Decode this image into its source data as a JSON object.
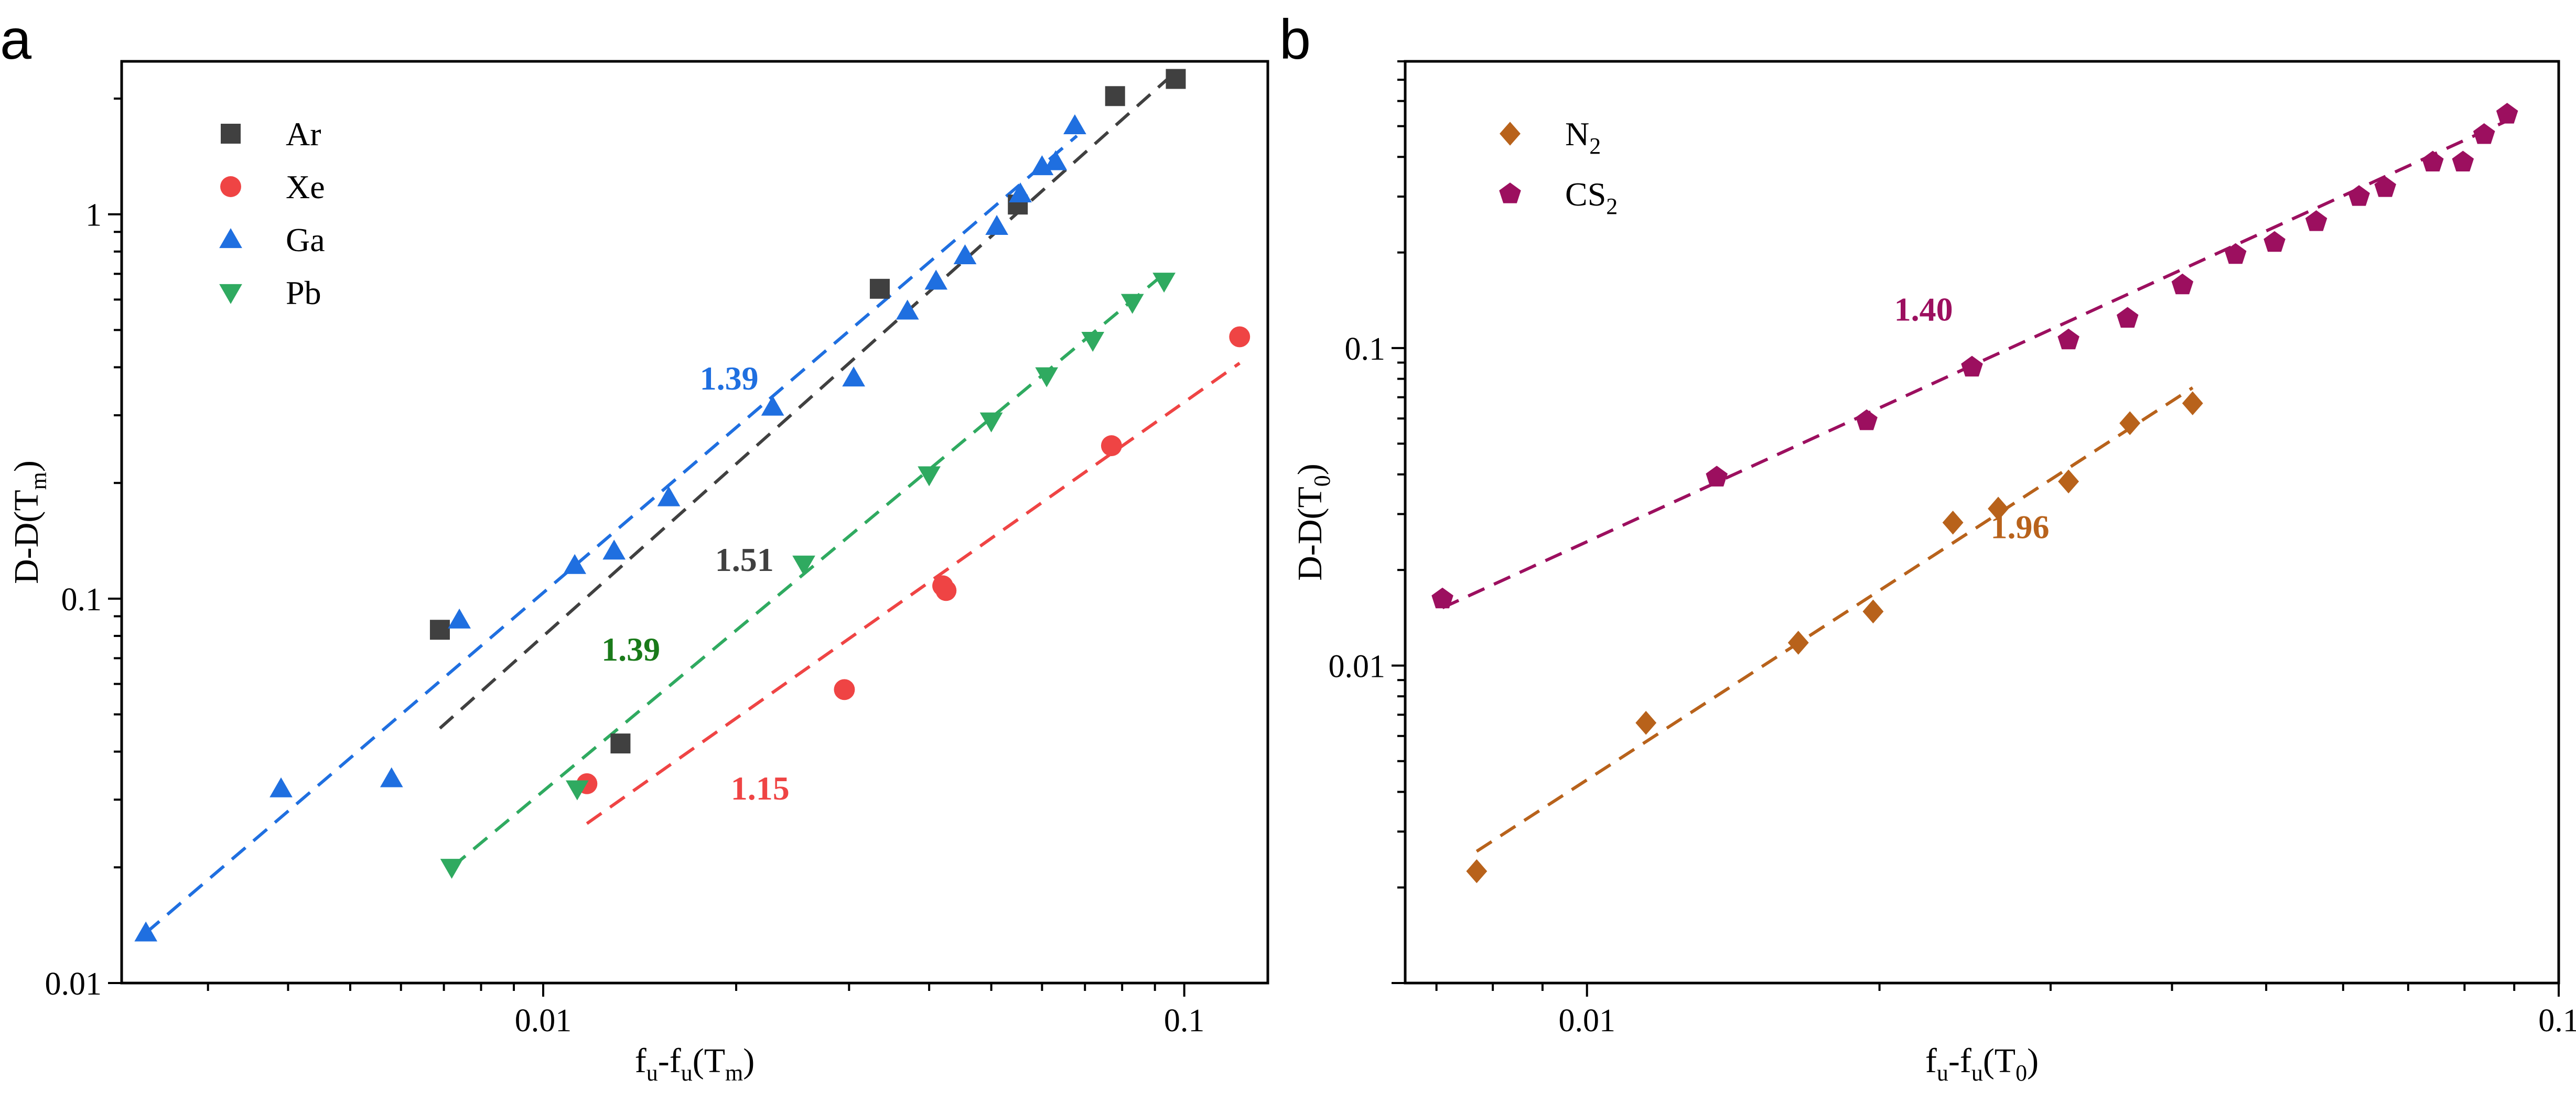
{
  "chart_data": [
    {
      "panel_label": "a",
      "type": "scatter",
      "scale": "log-log",
      "xlabel_main": "f",
      "xlabel_sub1": "u",
      "xlabel_mid": "-f",
      "xlabel_sub2": "u",
      "xlabel_paren_open": "(T",
      "xlabel_sub3": "m",
      "xlabel_paren_close": ")",
      "ylabel_main": "D-D(T",
      "ylabel_sub": "m",
      "ylabel_close": ")",
      "xlim": [
        0.0022,
        0.135
      ],
      "ylim": [
        0.01,
        2.5
      ],
      "x_ticks": [
        {
          "v": 0.01,
          "label": "0.01"
        },
        {
          "v": 0.1,
          "label": "0.1"
        }
      ],
      "y_ticks": [
        {
          "v": 0.01,
          "label": "0.01"
        },
        {
          "v": 0.1,
          "label": "0.1"
        },
        {
          "v": 1,
          "label": "1"
        }
      ],
      "legend_position": "top-left",
      "series": [
        {
          "name": "Ar",
          "marker": "square",
          "color": "#404040",
          "points": [
            [
              0.0069,
              0.083
            ],
            [
              0.0132,
              0.042
            ],
            [
              0.0335,
              0.64
            ],
            [
              0.055,
              1.06
            ],
            [
              0.078,
              2.03
            ],
            [
              0.097,
              2.25
            ]
          ],
          "fit": [
            [
              0.0069,
              0.046
            ],
            [
              0.097,
              2.35
            ]
          ]
        },
        {
          "name": "Xe",
          "marker": "circle",
          "color": "#ef4444",
          "points": [
            [
              0.0117,
              0.033
            ],
            [
              0.0295,
              0.058
            ],
            [
              0.042,
              0.108
            ],
            [
              0.0425,
              0.105
            ],
            [
              0.077,
              0.25
            ],
            [
              0.122,
              0.48
            ]
          ],
          "fit": [
            [
              0.0117,
              0.026
            ],
            [
              0.122,
              0.41
            ]
          ]
        },
        {
          "name": "Ga",
          "marker": "triangle-up",
          "color": "#1f6fe0",
          "points": [
            [
              0.0024,
              0.0135
            ],
            [
              0.0039,
              0.032
            ],
            [
              0.0058,
              0.034
            ],
            [
              0.0074,
              0.088
            ],
            [
              0.0112,
              0.122
            ],
            [
              0.0129,
              0.133
            ],
            [
              0.0157,
              0.183
            ],
            [
              0.0228,
              0.315
            ],
            [
              0.0305,
              0.375
            ],
            [
              0.037,
              0.56
            ],
            [
              0.041,
              0.67
            ],
            [
              0.0455,
              0.78
            ],
            [
              0.051,
              0.93
            ],
            [
              0.0555,
              1.13
            ],
            [
              0.06,
              1.33
            ],
            [
              0.063,
              1.37
            ],
            [
              0.0675,
              1.7
            ]
          ],
          "fit": [
            [
              0.0024,
              0.0135
            ],
            [
              0.068,
              1.6
            ]
          ]
        },
        {
          "name": "Pb",
          "marker": "triangle-down",
          "color": "#2faa60",
          "points": [
            [
              0.0072,
              0.02
            ],
            [
              0.0113,
              0.032
            ],
            [
              0.0255,
              0.123
            ],
            [
              0.04,
              0.21
            ],
            [
              0.05,
              0.29
            ],
            [
              0.061,
              0.38
            ],
            [
              0.072,
              0.47
            ],
            [
              0.083,
              0.59
            ],
            [
              0.093,
              0.67
            ]
          ],
          "fit": [
            [
              0.0072,
              0.02
            ],
            [
              0.093,
              0.7
            ]
          ]
        }
      ],
      "annotations": [
        {
          "text": "1.39",
          "color": "#1f6fe0",
          "at": [
            0.0195,
            0.35
          ]
        },
        {
          "text": "1.51",
          "color": "#404040",
          "at": [
            0.0206,
            0.118
          ]
        },
        {
          "text": "1.39",
          "color": "#1a7a1a",
          "at": [
            0.0137,
            0.069
          ]
        },
        {
          "text": "1.15",
          "color": "#ef4444",
          "at": [
            0.0218,
            0.03
          ]
        }
      ]
    },
    {
      "panel_label": "b",
      "type": "scatter",
      "scale": "log-log",
      "xlabel_main": "f",
      "xlabel_sub1": "u",
      "xlabel_mid": "-f",
      "xlabel_sub2": "u",
      "xlabel_paren_open": "(T",
      "xlabel_sub3": "0",
      "xlabel_paren_close": ")",
      "ylabel_main": "D-D(T",
      "ylabel_sub": "0",
      "ylabel_close": ")",
      "xlim": [
        0.0065,
        0.1
      ],
      "ylim": [
        0.001,
        0.8
      ],
      "x_ticks": [
        {
          "v": 0.01,
          "label": "0.01"
        },
        {
          "v": 0.1,
          "label": "0.1"
        }
      ],
      "y_ticks": [
        {
          "v": 0.01,
          "label": "0.01"
        },
        {
          "v": 0.1,
          "label": "0.1"
        }
      ],
      "legend_position": "top-left",
      "series": [
        {
          "name": "N",
          "name_sub": "2",
          "marker": "diamond",
          "color": "#b8621b",
          "points": [
            [
              0.0077,
              0.00225
            ],
            [
              0.0115,
              0.0066
            ],
            [
              0.0165,
              0.0118
            ],
            [
              0.0197,
              0.0148
            ],
            [
              0.0238,
              0.0282
            ],
            [
              0.0265,
              0.0312
            ],
            [
              0.0313,
              0.038
            ],
            [
              0.0362,
              0.058
            ],
            [
              0.042,
              0.067
            ]
          ],
          "fit": [
            [
              0.0077,
              0.0026
            ],
            [
              0.042,
              0.075
            ]
          ]
        },
        {
          "name": "CS",
          "name_sub": "2",
          "marker": "pentagon",
          "color": "#9c0f5f",
          "points": [
            [
              0.0071,
              0.0162
            ],
            [
              0.0136,
              0.0392
            ],
            [
              0.0194,
              0.059
            ],
            [
              0.0249,
              0.087
            ],
            [
              0.0313,
              0.106
            ],
            [
              0.036,
              0.124
            ],
            [
              0.041,
              0.158
            ],
            [
              0.0465,
              0.197
            ],
            [
              0.051,
              0.215
            ],
            [
              0.0563,
              0.25
            ],
            [
              0.0623,
              0.3
            ],
            [
              0.0663,
              0.32
            ],
            [
              0.0742,
              0.385
            ],
            [
              0.0797,
              0.385
            ],
            [
              0.0838,
              0.47
            ],
            [
              0.0885,
              0.545
            ]
          ],
          "fit": [
            [
              0.0071,
              0.0152
            ],
            [
              0.0885,
              0.52
            ]
          ]
        }
      ],
      "annotations": [
        {
          "text": "1.40",
          "color": "#9c0f5f",
          "at": [
            0.0222,
            0.122
          ]
        },
        {
          "text": "1.96",
          "color": "#b8621b",
          "at": [
            0.0279,
            0.0252
          ]
        }
      ]
    }
  ]
}
